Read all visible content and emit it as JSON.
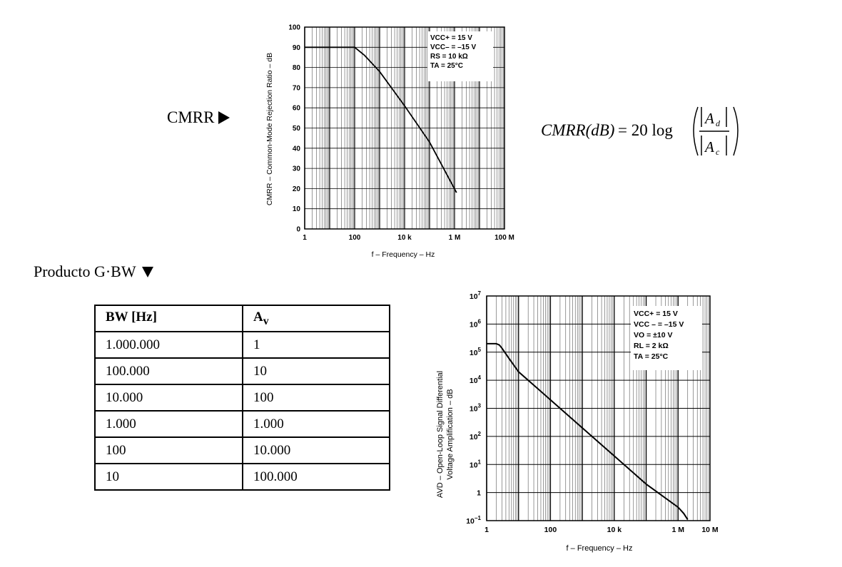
{
  "cmrr_section": {
    "label": "CMRR",
    "arrow_icon": "triangle-right-icon"
  },
  "gbw_section": {
    "label": "Producto G·BW",
    "arrow_icon": "triangle-down-icon"
  },
  "formula": {
    "lhs": "CMRR(dB)",
    "equals": "= 20 log",
    "numerator_symbol": "A",
    "numerator_sub": "d",
    "denominator_symbol": "A",
    "denominator_sub": "c"
  },
  "table": {
    "headers": [
      {
        "main": "BW [Hz]",
        "sub": ""
      },
      {
        "main": "A",
        "sub": "v"
      }
    ],
    "rows": [
      [
        "1.000.000",
        "1"
      ],
      [
        "100.000",
        "10"
      ],
      [
        "10.000",
        "100"
      ],
      [
        "1.000",
        "1.000"
      ],
      [
        "100",
        "10.000"
      ],
      [
        "10",
        "100.000"
      ]
    ]
  },
  "chart_data": [
    {
      "type": "line",
      "title": "",
      "xlabel": "f – Frequency – Hz",
      "ylabel": "CMRR – Common-Mode Rejection Ratio – dB",
      "x_scale": "log",
      "xlim": [
        1,
        100000000
      ],
      "ylim": [
        0,
        100
      ],
      "x_ticks": [
        {
          "value": 1,
          "label": "1"
        },
        {
          "value": 100,
          "label": "100"
        },
        {
          "value": 10000,
          "label": "10 k"
        },
        {
          "value": 1000000,
          "label": "1 M"
        },
        {
          "value": 100000000,
          "label": "100 M"
        }
      ],
      "y_ticks": [
        0,
        10,
        20,
        30,
        40,
        50,
        60,
        70,
        80,
        90,
        100
      ],
      "grid": true,
      "legend_placement": "top-right",
      "conditions": [
        "VCC+ = 15 V",
        "VCC– = –15 V",
        "RS = 10 kΩ",
        "TA = 25°C"
      ],
      "series": [
        {
          "x": [
            1,
            100,
            250,
            1000,
            10000,
            100000,
            1200000
          ],
          "y": [
            90,
            90,
            86,
            78,
            61,
            43,
            18
          ]
        }
      ]
    },
    {
      "type": "line",
      "title": "",
      "xlabel": "f – Frequency – Hz",
      "ylabel_lines": [
        "AVD – Open-Loop Signal Differential",
        "Voltage Amplification – dB"
      ],
      "x_scale": "log",
      "y_scale": "log",
      "xlim": [
        1,
        10000000
      ],
      "ylim": [
        0.1,
        10000000
      ],
      "x_ticks": [
        {
          "value": 1,
          "label": "1"
        },
        {
          "value": 100,
          "label": "100"
        },
        {
          "value": 10000,
          "label": "10 k"
        },
        {
          "value": 1000000,
          "label": "1 M"
        },
        {
          "value": 10000000,
          "label": "10 M"
        }
      ],
      "y_ticks": [
        {
          "value": 0.1,
          "mant": "10",
          "exp": "−1"
        },
        {
          "value": 1,
          "mant": "1",
          "exp": ""
        },
        {
          "value": 10,
          "mant": "10",
          "exp": "1"
        },
        {
          "value": 100,
          "mant": "10",
          "exp": "2"
        },
        {
          "value": 1000,
          "mant": "10",
          "exp": "3"
        },
        {
          "value": 10000,
          "mant": "10",
          "exp": "4"
        },
        {
          "value": 100000,
          "mant": "10",
          "exp": "5"
        },
        {
          "value": 1000000,
          "mant": "10",
          "exp": "6"
        },
        {
          "value": 10000000,
          "mant": "10",
          "exp": "7"
        }
      ],
      "grid": true,
      "legend_placement": "top-right",
      "conditions": [
        "VCC+ = 15 V",
        "VCC – = –15 V",
        "VO = ±10 V",
        "RL = 2 kΩ",
        "TA = 25°C"
      ],
      "series": [
        {
          "x": [
            1,
            2,
            2.5,
            3,
            5,
            10,
            100,
            1000,
            10000,
            100000,
            1000000,
            1500000,
            2000000
          ],
          "y": [
            200000,
            200000,
            180000,
            140000,
            60000,
            20000,
            2000,
            200,
            20,
            2,
            0.3,
            0.18,
            0.11
          ]
        }
      ]
    }
  ]
}
